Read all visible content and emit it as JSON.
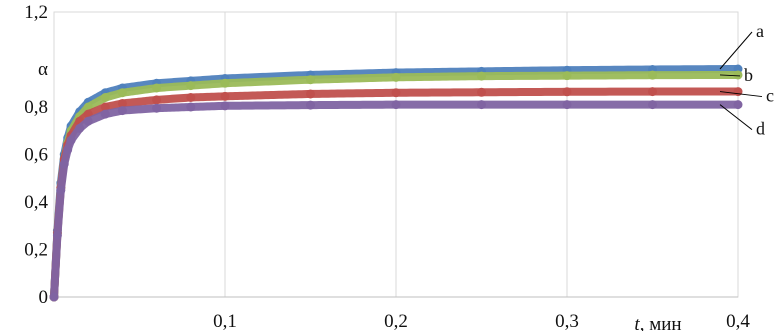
{
  "chart_data": {
    "type": "scatter",
    "title": "",
    "xlabel": {
      "var": "t",
      "unit": ", мин"
    },
    "ylabel": "α",
    "xlim": [
      0,
      0.4
    ],
    "ylim": [
      0,
      1.2
    ],
    "grid": "vertical",
    "legend": "none",
    "x_ticks": [
      {
        "v": 0.1,
        "label": "0,1"
      },
      {
        "v": 0.2,
        "label": "0,2"
      },
      {
        "v": 0.3,
        "label": "0,3"
      },
      {
        "v": 0.4,
        "label": "0,4"
      }
    ],
    "y_ticks": [
      {
        "v": 0,
        "label": "0"
      },
      {
        "v": 0.2,
        "label": "0,2"
      },
      {
        "v": 0.4,
        "label": "0,4"
      },
      {
        "v": 0.6,
        "label": "0,6"
      },
      {
        "v": 0.8,
        "label": "0,8"
      },
      {
        "v": 1.2,
        "label": "1,2"
      }
    ],
    "x": [
      0,
      0.002,
      0.004,
      0.006,
      0.008,
      0.01,
      0.015,
      0.02,
      0.03,
      0.04,
      0.06,
      0.08,
      0.1,
      0.15,
      0.2,
      0.25,
      0.3,
      0.35,
      0.4
    ],
    "series": [
      {
        "name": "a",
        "color": "#4f81bd",
        "values": [
          0,
          0.28,
          0.48,
          0.6,
          0.67,
          0.72,
          0.78,
          0.82,
          0.86,
          0.88,
          0.9,
          0.91,
          0.92,
          0.935,
          0.945,
          0.95,
          0.955,
          0.958,
          0.96
        ]
      },
      {
        "name": "b",
        "color": "#9bbb59",
        "values": [
          0,
          0.27,
          0.46,
          0.58,
          0.65,
          0.7,
          0.76,
          0.8,
          0.84,
          0.86,
          0.88,
          0.89,
          0.9,
          0.915,
          0.925,
          0.93,
          0.932,
          0.934,
          0.935
        ]
      },
      {
        "name": "c",
        "color": "#c0504d",
        "values": [
          0,
          0.27,
          0.46,
          0.58,
          0.64,
          0.68,
          0.74,
          0.77,
          0.8,
          0.815,
          0.83,
          0.84,
          0.845,
          0.855,
          0.86,
          0.862,
          0.864,
          0.865,
          0.865
        ]
      },
      {
        "name": "d",
        "color": "#8064a2",
        "values": [
          0,
          0.26,
          0.45,
          0.56,
          0.62,
          0.66,
          0.71,
          0.74,
          0.77,
          0.785,
          0.795,
          0.8,
          0.805,
          0.808,
          0.81,
          0.81,
          0.81,
          0.81,
          0.81
        ]
      }
    ]
  }
}
